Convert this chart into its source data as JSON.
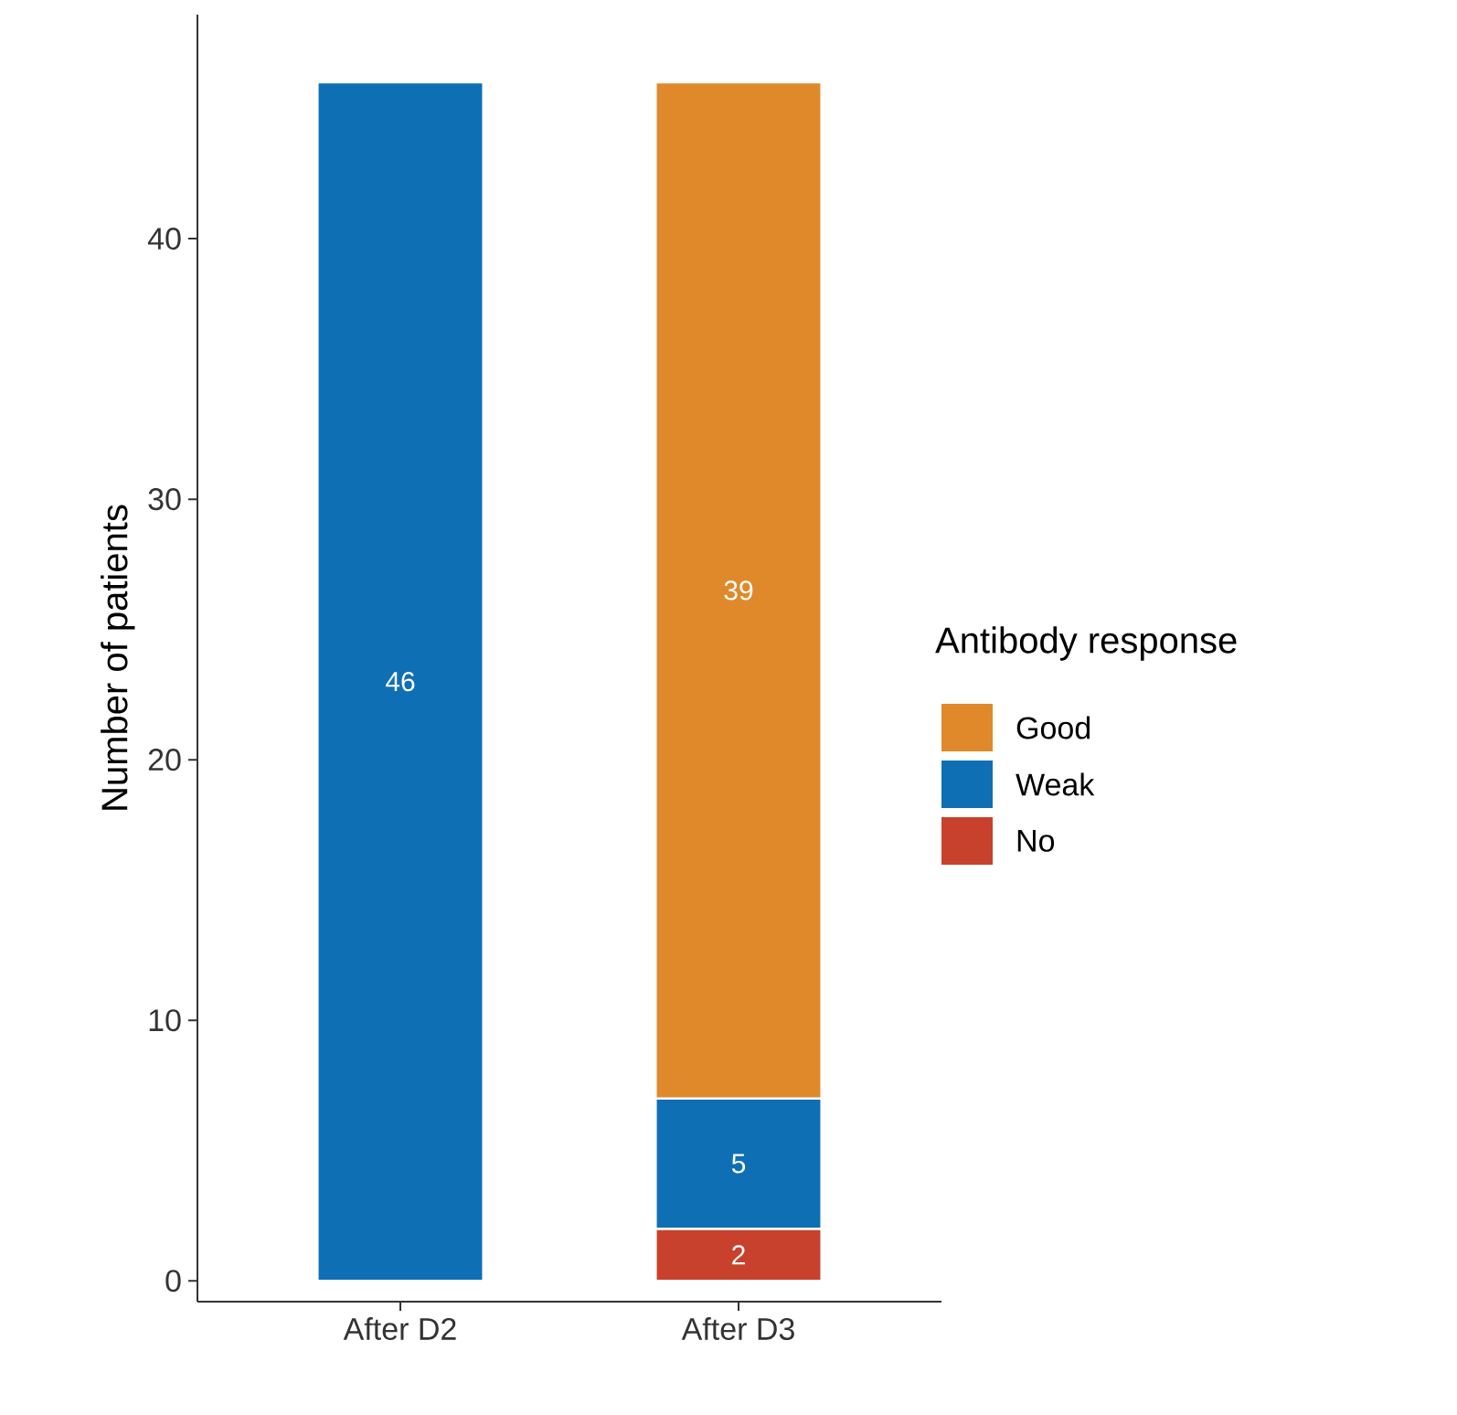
{
  "chart_data": {
    "type": "bar",
    "ylabel": "Number of patients",
    "legend_title": "Antibody response",
    "categories": [
      "After D2",
      "After D3"
    ],
    "series": [
      {
        "name": "No",
        "color": "#c8412c",
        "values": [
          null,
          2
        ]
      },
      {
        "name": "Weak",
        "color": "#0f6fb5",
        "values": [
          46,
          5
        ]
      },
      {
        "name": "Good",
        "color": "#e0892a",
        "values": [
          null,
          39
        ]
      }
    ],
    "stacked": true,
    "data_labels": true,
    "legend": "right",
    "grid": false,
    "ylim": [
      -0.8,
      48.6
    ],
    "yticks": [
      0,
      10,
      20,
      30,
      40
    ]
  }
}
